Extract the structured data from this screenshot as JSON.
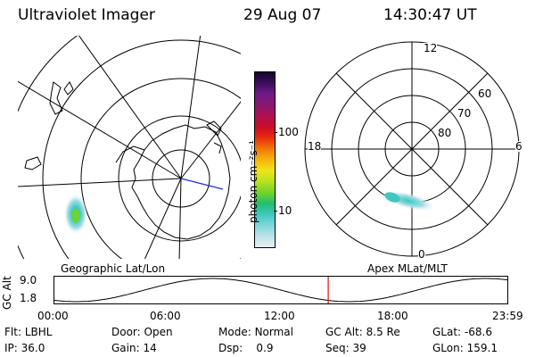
{
  "header": {
    "title": "Ultraviolet Imager",
    "date": "29 Aug 07",
    "time": "14:30:47 UT"
  },
  "left_map": {
    "label": "Geographic Lat/Lon"
  },
  "right_map": {
    "label": "Apex MLat/MLT",
    "mlt_labels": [
      "12",
      "18",
      "6",
      "0"
    ],
    "mlat_labels": [
      "60",
      "70",
      "80"
    ]
  },
  "colorbar": {
    "unit_label": "photon cm⁻²s⁻¹",
    "ticks": [
      "100",
      "10"
    ],
    "scale": "log",
    "colors": [
      "#e8eef2",
      "#bfe3ea",
      "#78d6d8",
      "#3cc8be",
      "#22bd6e",
      "#6fd42a",
      "#bce21c",
      "#f0e41a",
      "#f8b20c",
      "#f07a08",
      "#e8280c",
      "#c80c2c",
      "#b01050",
      "#8a1870",
      "#6c1a86",
      "#3c0c5a",
      "#14062a"
    ]
  },
  "timeline": {
    "ylabel": "GC Alt",
    "y_ticks": [
      "9.0",
      "1.8"
    ],
    "x_ticks": [
      "00:00",
      "06:00",
      "12:00",
      "18:00",
      "23:59"
    ],
    "marker_time": "14:30"
  },
  "info": {
    "flt": {
      "label": "Flt:",
      "value": "LBHL"
    },
    "door": {
      "label": "Door:",
      "value": "Open"
    },
    "mode": {
      "label": "Mode:",
      "value": "Normal"
    },
    "gcalt": {
      "label": "GC Alt:",
      "value": "8.5 Re"
    },
    "glat": {
      "label": "GLat:",
      "value": "-68.6"
    },
    "ip": {
      "label": "IP:",
      "value": "36.0"
    },
    "gain": {
      "label": "Gain:",
      "value": "14"
    },
    "dsp": {
      "label": "Dsp:",
      "value": "0.9"
    },
    "seq": {
      "label": "Seq:",
      "value": "39"
    },
    "glon": {
      "label": "GLon:",
      "value": "159.1"
    }
  }
}
